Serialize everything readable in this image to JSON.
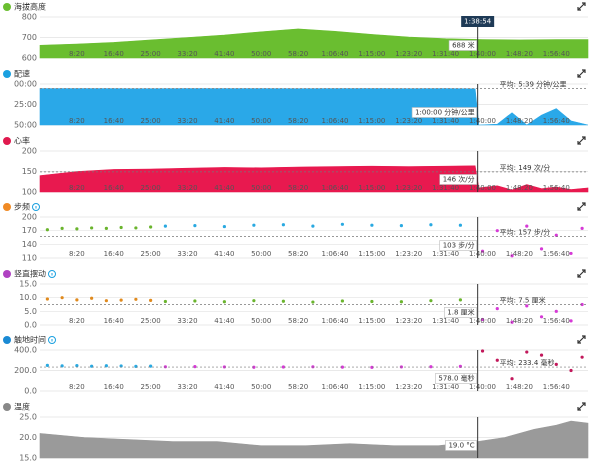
{
  "cursor": {
    "x": 5934,
    "label": "1:38:54"
  },
  "chart_data": [
    {
      "type": "area",
      "title": "海拔高度",
      "color": "#6abe30",
      "ylim": [
        600,
        800
      ],
      "yticks": [
        600,
        700,
        800
      ],
      "xlim": [
        0,
        7430
      ],
      "xticks": [
        {
          "value": 500,
          "label": "8:20"
        },
        {
          "value": 1000,
          "label": "16:40"
        },
        {
          "value": 1500,
          "label": "25:00"
        },
        {
          "value": 2000,
          "label": "33:20"
        },
        {
          "value": 2500,
          "label": "41:40"
        },
        {
          "value": 3000,
          "label": "50:00"
        },
        {
          "value": 3500,
          "label": "58:20"
        },
        {
          "value": 4000,
          "label": "1:06:40"
        },
        {
          "value": 4500,
          "label": "1:15:00"
        },
        {
          "value": 5000,
          "label": "1:23:20"
        },
        {
          "value": 5500,
          "label": "1:31:40"
        },
        {
          "value": 6000,
          "label": "1:40:00"
        },
        {
          "value": 6500,
          "label": "1:48:20"
        },
        {
          "value": 7000,
          "label": "1:56:40"
        }
      ],
      "series": [
        {
          "color": "#6abe30",
          "x": [
            0,
            500,
            1000,
            1500,
            2000,
            2500,
            3000,
            3500,
            4000,
            4500,
            5000,
            5500,
            6000,
            6500,
            7000,
            7430
          ],
          "values": [
            662,
            668,
            676,
            688,
            700,
            712,
            728,
            742,
            730,
            715,
            702,
            694,
            690,
            688,
            690,
            690
          ]
        }
      ],
      "hover_label": "688 米"
    },
    {
      "type": "area",
      "title": "配速",
      "color": "#1aa0e0",
      "y_reversed": true,
      "ylim": [
        0,
        50
      ],
      "yticks": [
        {
          "value": 0,
          "label": "00:00"
        },
        {
          "value": 25,
          "label": "25:00"
        },
        {
          "value": 50,
          "label": "50:00"
        }
      ],
      "xlim": [
        0,
        7430
      ],
      "xticks": [
        {
          "value": 500,
          "label": "8:20"
        },
        {
          "value": 1000,
          "label": "16:40"
        },
        {
          "value": 1500,
          "label": "25:00"
        },
        {
          "value": 2000,
          "label": "33:20"
        },
        {
          "value": 2500,
          "label": "41:40"
        },
        {
          "value": 3000,
          "label": "50:00"
        },
        {
          "value": 3500,
          "label": "58:20"
        },
        {
          "value": 4000,
          "label": "1:06:40"
        },
        {
          "value": 4500,
          "label": "1:15:00"
        },
        {
          "value": 5000,
          "label": "1:23:20"
        },
        {
          "value": 5500,
          "label": "1:31:40"
        },
        {
          "value": 6000,
          "label": "1:40:00"
        },
        {
          "value": 6500,
          "label": "1:48:20"
        },
        {
          "value": 7000,
          "label": "1:56:40"
        }
      ],
      "series": [
        {
          "color": "#2aa8e8",
          "x": [
            0,
            500,
            1000,
            1500,
            2000,
            2500,
            3000,
            3500,
            4000,
            4500,
            5000,
            5500,
            5900,
            5950,
            6200,
            6400,
            6600,
            6800,
            7000,
            7200,
            7430
          ],
          "values": [
            5.6,
            5.5,
            5.6,
            5.7,
            5.5,
            5.6,
            5.6,
            5.7,
            5.6,
            5.5,
            5.7,
            5.6,
            5.8,
            50,
            49,
            35,
            50,
            38,
            30,
            45,
            50
          ]
        }
      ],
      "average": 5.65,
      "average_label": "平均: 5:39 分钟/公里",
      "hover_label": "1:00:00 分钟/公里"
    },
    {
      "type": "area",
      "title": "心率",
      "color": "#e0194e",
      "ylim": [
        100,
        200
      ],
      "yticks": [
        100,
        150,
        200
      ],
      "xlim": [
        0,
        7430
      ],
      "xticks": [
        {
          "value": 500,
          "label": "8:20"
        },
        {
          "value": 1000,
          "label": "16:40"
        },
        {
          "value": 1500,
          "label": "25:00"
        },
        {
          "value": 2000,
          "label": "33:20"
        },
        {
          "value": 2500,
          "label": "41:40"
        },
        {
          "value": 3000,
          "label": "50:00"
        },
        {
          "value": 3500,
          "label": "58:20"
        },
        {
          "value": 4000,
          "label": "1:06:40"
        },
        {
          "value": 4500,
          "label": "1:15:00"
        },
        {
          "value": 5000,
          "label": "1:23:20"
        },
        {
          "value": 5500,
          "label": "1:31:40"
        },
        {
          "value": 6000,
          "label": "1:40:00"
        },
        {
          "value": 6500,
          "label": "1:48:20"
        },
        {
          "value": 7000,
          "label": "1:56:40"
        }
      ],
      "series": [
        {
          "color": "#e8194f",
          "x": [
            0,
            500,
            1000,
            1500,
            2000,
            2500,
            3000,
            3500,
            4000,
            4500,
            5000,
            5500,
            5900,
            5950,
            6200,
            6400,
            6600,
            6800,
            7000,
            7200,
            7430
          ],
          "values": [
            140,
            150,
            155,
            156,
            158,
            160,
            159,
            161,
            162,
            163,
            162,
            163,
            164,
            110,
            115,
            105,
            118,
            108,
            112,
            106,
            110
          ]
        }
      ],
      "average": 149,
      "average_label": "平均: 149 次/分",
      "hover_label": "146 次/分"
    },
    {
      "type": "scatter",
      "title": "步频",
      "color": "#f08a24",
      "help": true,
      "ylim": [
        110,
        200
      ],
      "yticks": [
        110,
        140,
        170,
        200
      ],
      "xlim": [
        0,
        7430
      ],
      "xticks": [
        {
          "value": 500,
          "label": "8:20"
        },
        {
          "value": 1000,
          "label": "16:40"
        },
        {
          "value": 1500,
          "label": "25:00"
        },
        {
          "value": 2000,
          "label": "33:20"
        },
        {
          "value": 2500,
          "label": "41:40"
        },
        {
          "value": 3000,
          "label": "50:00"
        },
        {
          "value": 3500,
          "label": "58:20"
        },
        {
          "value": 4000,
          "label": "1:06:40"
        },
        {
          "value": 4500,
          "label": "1:15:00"
        },
        {
          "value": 5000,
          "label": "1:23:20"
        },
        {
          "value": 5500,
          "label": "1:31:40"
        },
        {
          "value": 6000,
          "label": "1:40:00"
        },
        {
          "value": 6500,
          "label": "1:48:20"
        },
        {
          "value": 7000,
          "label": "1:56:40"
        }
      ],
      "series": [
        {
          "color": "#6ab42d",
          "x": [
            100,
            300,
            500,
            700,
            900,
            1100,
            1300,
            1500
          ],
          "values": [
            172,
            175,
            174,
            176,
            175,
            177,
            176,
            178
          ]
        },
        {
          "color": "#29a9e1",
          "x": [
            1700,
            2100,
            2500,
            2900,
            3300,
            3700,
            4100,
            4500,
            4900,
            5300,
            5700
          ],
          "values": [
            180,
            181,
            179,
            182,
            183,
            180,
            184,
            182,
            181,
            183,
            182
          ]
        },
        {
          "color": "#d63ad6",
          "x": [
            6000,
            6200,
            6400,
            6600,
            6800,
            7000,
            7200,
            7350
          ],
          "values": [
            125,
            170,
            115,
            180,
            130,
            160,
            120,
            175
          ]
        }
      ],
      "average": 157,
      "average_label": "平均: 157 步/分",
      "hover_label": "103 步/分"
    },
    {
      "type": "scatter",
      "title": "竖直摆动",
      "color": "#b042c2",
      "help": true,
      "ylim": [
        0,
        15
      ],
      "yticks": [
        {
          "value": 0,
          "label": "0.0"
        },
        {
          "value": 5,
          "label": "5.0"
        },
        {
          "value": 10,
          "label": "10.0"
        },
        {
          "value": 15,
          "label": "15.0"
        }
      ],
      "xlim": [
        0,
        7430
      ],
      "xticks": [
        {
          "value": 500,
          "label": "8:20"
        },
        {
          "value": 1000,
          "label": "16:40"
        },
        {
          "value": 1500,
          "label": "25:00"
        },
        {
          "value": 2000,
          "label": "33:20"
        },
        {
          "value": 2500,
          "label": "41:40"
        },
        {
          "value": 3000,
          "label": "50:00"
        },
        {
          "value": 3500,
          "label": "58:20"
        },
        {
          "value": 4000,
          "label": "1:06:40"
        },
        {
          "value": 4500,
          "label": "1:15:00"
        },
        {
          "value": 5000,
          "label": "1:23:20"
        },
        {
          "value": 5500,
          "label": "1:31:40"
        },
        {
          "value": 6000,
          "label": "1:40:00"
        },
        {
          "value": 6500,
          "label": "1:48:20"
        },
        {
          "value": 7000,
          "label": "1:56:40"
        }
      ],
      "series": [
        {
          "color": "#e08a1e",
          "x": [
            100,
            300,
            500,
            700,
            900,
            1100,
            1300,
            1500
          ],
          "values": [
            9.5,
            10,
            9.2,
            9.8,
            8.9,
            9.1,
            9.4,
            9
          ]
        },
        {
          "color": "#6ab42d",
          "x": [
            1700,
            2100,
            2500,
            2900,
            3300,
            3700,
            4100,
            4500,
            4900,
            5300,
            5700
          ],
          "values": [
            8.6,
            8.8,
            8.5,
            8.9,
            8.7,
            8.4,
            8.8,
            8.6,
            8.5,
            8.9,
            9.2
          ]
        },
        {
          "color": "#d63ad6",
          "x": [
            6000,
            6200,
            6400,
            6600,
            6800,
            7000,
            7200,
            7350
          ],
          "values": [
            2,
            6,
            1,
            7,
            3,
            5,
            1.5,
            7.5
          ]
        }
      ],
      "average": 7.5,
      "average_label": "平均: 7.5 厘米",
      "hover_label": "1.8 厘米"
    },
    {
      "type": "scatter",
      "title": "触地时间",
      "color": "#1a8ad4",
      "help": true,
      "ylim": [
        0,
        400
      ],
      "yticks": [
        {
          "value": 0,
          "label": "0.0"
        },
        {
          "value": 200,
          "label": "200.0"
        },
        {
          "value": 400,
          "label": "400.0"
        }
      ],
      "xlim": [
        0,
        7430
      ],
      "xticks": [
        {
          "value": 500,
          "label": "8:20"
        },
        {
          "value": 1000,
          "label": "16:40"
        },
        {
          "value": 1500,
          "label": "25:00"
        },
        {
          "value": 2000,
          "label": "33:20"
        },
        {
          "value": 2500,
          "label": "41:40"
        },
        {
          "value": 3000,
          "label": "50:00"
        },
        {
          "value": 3500,
          "label": "58:20"
        },
        {
          "value": 4000,
          "label": "1:06:40"
        },
        {
          "value": 4500,
          "label": "1:15:00"
        },
        {
          "value": 5000,
          "label": "1:23:20"
        },
        {
          "value": 5500,
          "label": "1:31:40"
        },
        {
          "value": 6000,
          "label": "1:40:00"
        },
        {
          "value": 6500,
          "label": "1:48:20"
        },
        {
          "value": 7000,
          "label": "1:56:40"
        }
      ],
      "series": [
        {
          "color": "#29a9e1",
          "x": [
            100,
            300,
            500,
            700,
            900,
            1100,
            1300,
            1500
          ],
          "values": [
            250,
            245,
            248,
            242,
            246,
            244,
            240,
            243
          ]
        },
        {
          "color": "#d63ad6",
          "x": [
            1700,
            2100,
            2500,
            2900,
            3300,
            3700,
            4100,
            4500,
            4900,
            5300,
            5700
          ],
          "values": [
            236,
            238,
            235,
            232,
            234,
            236,
            233,
            231,
            235,
            237,
            240
          ]
        },
        {
          "color": "#c2185b",
          "x": [
            6000,
            6200,
            6400,
            6600,
            6800,
            7000,
            7200,
            7350
          ],
          "values": [
            390,
            300,
            120,
            380,
            350,
            260,
            200,
            330
          ]
        }
      ],
      "average": 233.4,
      "average_label": "平均: 233.4 毫秒",
      "hover_label": "578.0 毫秒"
    },
    {
      "type": "area",
      "title": "温度",
      "color": "#888888",
      "ylim": [
        15,
        25
      ],
      "yticks": [
        {
          "value": 15,
          "label": "15.0"
        },
        {
          "value": 20,
          "label": "20.0"
        },
        {
          "value": 25,
          "label": "25.0"
        }
      ],
      "xlim": [
        0,
        7430
      ],
      "series": [
        {
          "color": "#9a9a9a",
          "x": [
            0,
            600,
            1200,
            1800,
            2400,
            3000,
            3600,
            4200,
            4800,
            5400,
            5934,
            6300,
            6700,
            7000,
            7200,
            7430
          ],
          "values": [
            21,
            20,
            19.5,
            19,
            19,
            18,
            18,
            18.5,
            18,
            18,
            19,
            20,
            22,
            23,
            24,
            23.5
          ]
        }
      ],
      "hover_label": "19.0 °C"
    }
  ]
}
